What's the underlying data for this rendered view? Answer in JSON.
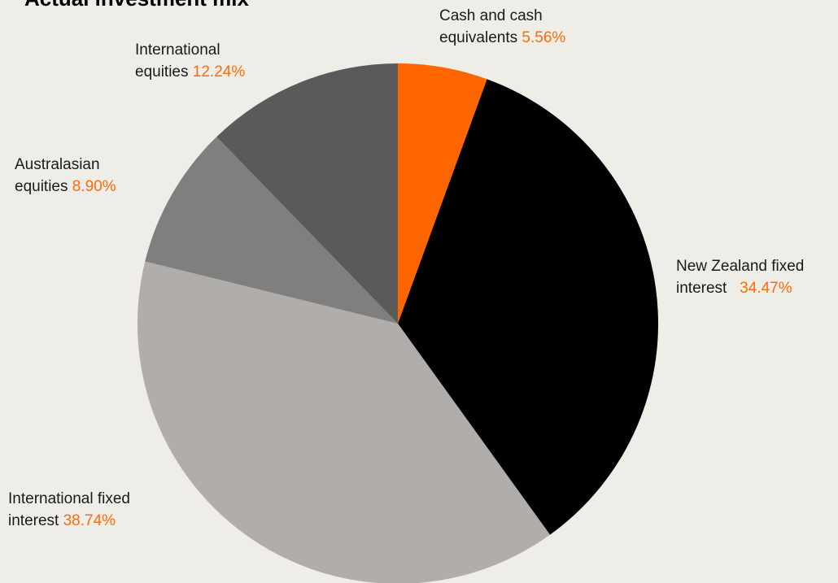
{
  "chart_data": {
    "type": "pie",
    "title": "Actual investment mix",
    "slices": [
      {
        "label_line1": "Cash and cash",
        "label_line2": "equivalents",
        "value": 5.56,
        "value_label": "5.56%",
        "color": "#ff6600"
      },
      {
        "label_line1": "New Zealand fixed",
        "label_line2": "interest",
        "value": 34.47,
        "value_label": "34.47%",
        "color": "#000000"
      },
      {
        "label_line1": "International fixed",
        "label_line2": "interest",
        "value": 38.74,
        "value_label": "38.74%",
        "color": "#b0adab"
      },
      {
        "label_line1": "Australasian",
        "label_line2": "equities",
        "value": 8.9,
        "value_label": "8.90%",
        "color": "#7f7f7f"
      },
      {
        "label_line1": "International",
        "label_line2": "equities",
        "value": 12.24,
        "value_label": "12.24%",
        "color": "#5a5a5a"
      }
    ],
    "start_angle_deg": 0,
    "direction": "clockwise",
    "value_color": "#ff6b0a"
  }
}
